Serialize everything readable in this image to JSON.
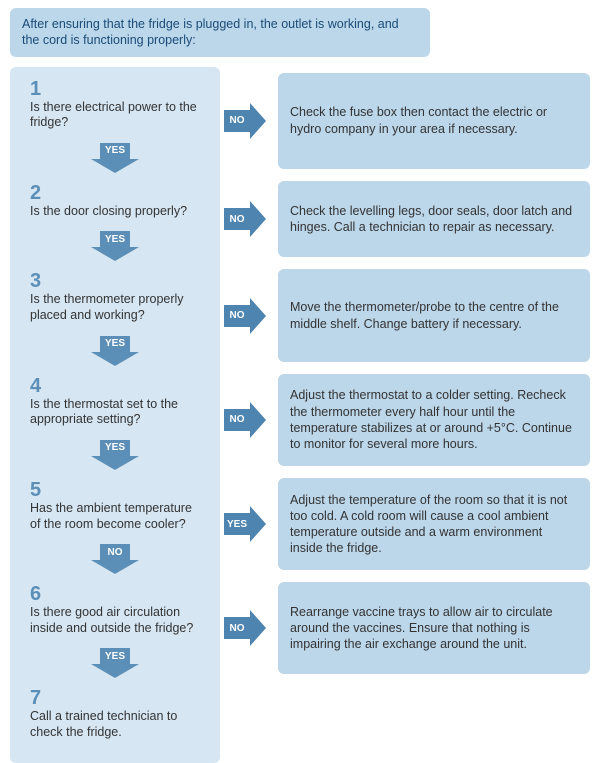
{
  "intro": "After ensuring that the fridge is plugged in, the outlet is working, and the cord is functioning properly:",
  "colors": {
    "question_bg": "#d6e6f2",
    "answer_bg": "#bcd6ea",
    "arrow_fill": "#5c8fb8",
    "number_color": "#5c8fb8",
    "text_color": "#333333"
  },
  "steps": [
    {
      "num": "1",
      "question": "Is there electrical power to the fridge?",
      "branch_label": "NO",
      "down_label": "YES",
      "answer": "Check the fuse box then contact the electric or hydro company in your area if necessary."
    },
    {
      "num": "2",
      "question": "Is the door closing properly?",
      "branch_label": "NO",
      "down_label": "YES",
      "answer": "Check the levelling legs, door seals, door latch and hinges. Call a technician to repair as necessary."
    },
    {
      "num": "3",
      "question": "Is the thermometer properly placed and working?",
      "branch_label": "NO",
      "down_label": "YES",
      "answer": "Move the thermometer/probe to the centre of the middle shelf. Change battery if necessary."
    },
    {
      "num": "4",
      "question": "Is the thermostat set to the appropriate setting?",
      "branch_label": "NO",
      "down_label": "YES",
      "answer": "Adjust the thermostat to a colder setting. Recheck the thermometer every half hour until the temperature stabilizes at or around +5°C. Continue to monitor for several more hours."
    },
    {
      "num": "5",
      "question": "Has the ambient temperature of the room become cooler?",
      "branch_label": "YES",
      "down_label": "NO",
      "answer": "Adjust the temperature of the room so that it is not too cold. A cold room will cause a cool ambient temperature outside and a warm environment inside the fridge."
    },
    {
      "num": "6",
      "question": "Is there good air circulation inside and outside the fridge?",
      "branch_label": "NO",
      "down_label": "YES",
      "answer": "Rearrange vaccine trays to allow air to circulate around the vaccines. Ensure that nothing is impairing the air exchange around the unit."
    },
    {
      "num": "7",
      "question": "Call a trained technician to check the fridge.",
      "branch_label": null,
      "down_label": null,
      "answer": null
    }
  ]
}
